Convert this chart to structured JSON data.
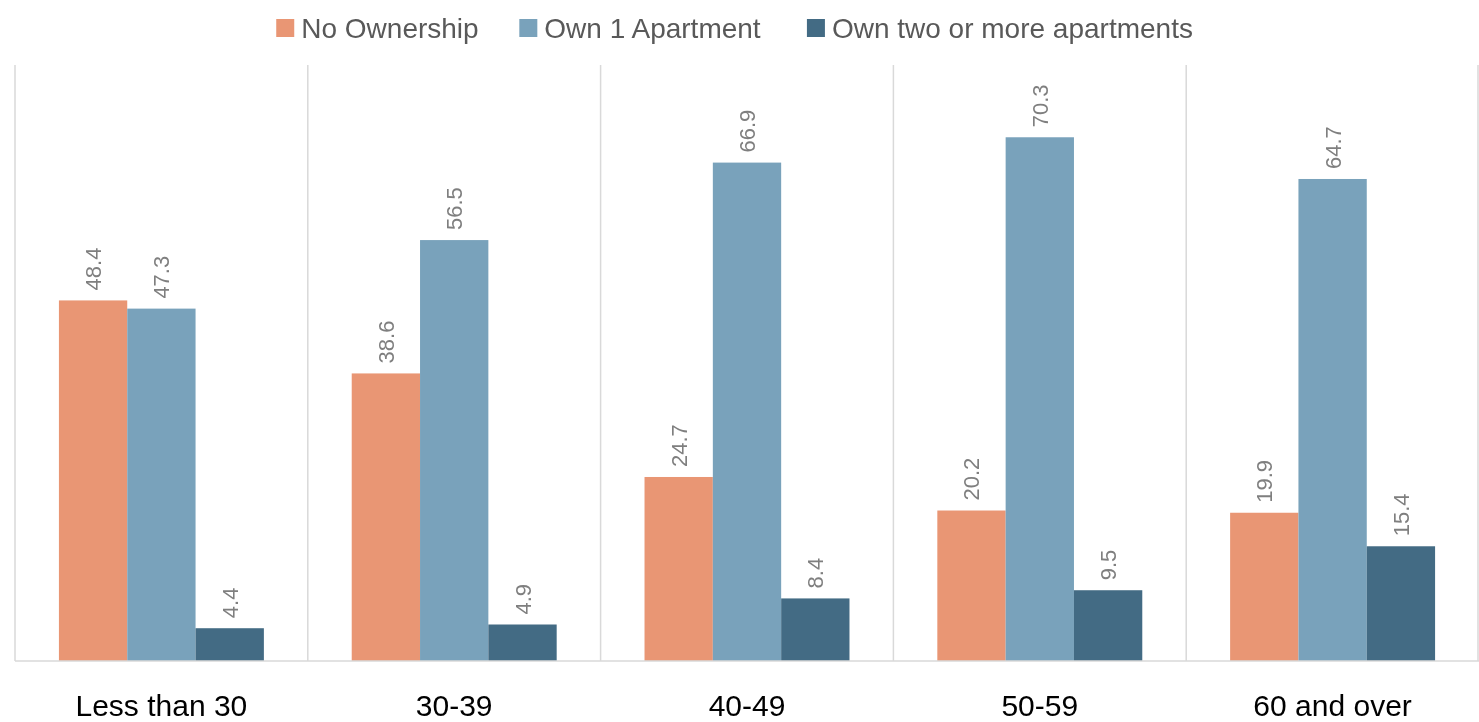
{
  "chart_data": {
    "type": "bar",
    "categories": [
      "Less than 30",
      "30-39",
      "40-49",
      "50-59",
      "60 and over"
    ],
    "series": [
      {
        "name": "No Ownership",
        "color": "#e99674",
        "values": [
          48.4,
          38.6,
          24.7,
          20.2,
          19.9
        ]
      },
      {
        "name": "Own 1 Apartment",
        "color": "#79a2bb",
        "values": [
          47.3,
          56.5,
          66.9,
          70.3,
          64.7
        ]
      },
      {
        "name": "Own two or more apartments",
        "color": "#436b84",
        "values": [
          4.4,
          4.9,
          8.4,
          9.5,
          15.4
        ]
      }
    ],
    "ylim": [
      0,
      80
    ],
    "data_labels": true,
    "legend": "top",
    "grid": "x",
    "tick_labels": "x"
  }
}
